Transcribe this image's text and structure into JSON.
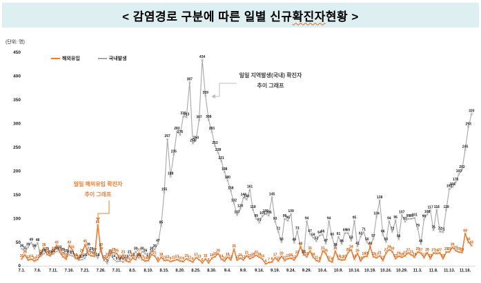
{
  "banner": {
    "pre": "< 감염경로 구분에 따른 일별 신규 ",
    "highlight": "확진자",
    "post": " 현황 >"
  },
  "unit_label": "(단위: 명)",
  "colors": {
    "banner_bg": "#DDEFF1",
    "imported": "#ED7D31",
    "domestic": "#A6A6A6",
    "imported_label": "#C55A11",
    "domestic_label": "#1A1A1A"
  },
  "legend": [
    {
      "label": "해외유입"
    },
    {
      "label": "국내발생"
    }
  ],
  "annotations": {
    "domestic": {
      "line1": "일일 지역발생(국내) 확진자",
      "line2": "추이 그래프"
    },
    "imported": {
      "line1": "일일 해외유입 확진자",
      "line2": "추이 그래프"
    }
  },
  "chart_data": {
    "type": "line",
    "title": "< 감염경로 구분에 따른 일별 신규 확진자 현황 >",
    "xlabel": "",
    "ylabel": "(단위: 명)",
    "ylim": [
      0,
      450
    ],
    "grid": false,
    "legend_position": "top-left",
    "x_start_date": "7.1.",
    "x_end_date": "11.20.",
    "y_ticks": [
      0,
      50,
      100,
      150,
      200,
      250,
      300,
      350,
      400,
      450
    ],
    "x_tick_labels": [
      "7.1.",
      "7.6.",
      "7.11.",
      "7.16.",
      "7.21.",
      "7.26.",
      "7.31.",
      "8.5.",
      "8.10.",
      "8.15.",
      "8.20.",
      "8.25.",
      "8.30.",
      "9.4.",
      "9.9.",
      "9.14.",
      "9.19.",
      "9.24.",
      "9.29.",
      "10.4.",
      "10.9.",
      "10.14.",
      "10.19.",
      "10.24.",
      "10.29.",
      "11.3.",
      "11.8.",
      "11.13.",
      "11.18."
    ],
    "x_tick_every_n_points": 5,
    "series": [
      {
        "id": "imported",
        "name": "해외유입",
        "color": "#ED7D31",
        "label_color": "#C55A11",
        "line_width": 1.6,
        "values": [
          15,
          23,
          12,
          14,
          10,
          13,
          24,
          38,
          24,
          21,
          30,
          43,
          29,
          19,
          14,
          43,
          33,
          16,
          14,
          26,
          45,
          24,
          21,
          20,
          86,
          30,
          12,
          18,
          25,
          28,
          26,
          13,
          23,
          10,
          8,
          16,
          13,
          27,
          13,
          10,
          11,
          24,
          21,
          9,
          18,
          11,
          12,
          9,
          11,
          13,
          10,
          9,
          15,
          11,
          8,
          17,
          13,
          6,
          15,
          6,
          16,
          19,
          26,
          14,
          10,
          18,
          12,
          35,
          12,
          16,
          12,
          21,
          15,
          18,
          22,
          18,
          14,
          4,
          7,
          8,
          17,
          10,
          20,
          11,
          15,
          16,
          12,
          22,
          40,
          24,
          19,
          31,
          18,
          11,
          9,
          31,
          26,
          11,
          8,
          31,
          14,
          12,
          13,
          28,
          34,
          14,
          26,
          10,
          19,
          20,
          40,
          19,
          17,
          21,
          11,
          27,
          34,
          30,
          15,
          20,
          18,
          21,
          27,
          23,
          18,
          29,
          27,
          17,
          28,
          15,
          27,
          26,
          27,
          15,
          29,
          29,
          39,
          32,
          29,
          28,
          68,
          50,
          43
        ]
      },
      {
        "id": "domestic",
        "name": "국내발생",
        "color": "#A6A6A6",
        "label_color": "#1A1A1A",
        "line_width": 1.1,
        "values": [
          36,
          31,
          39,
          49,
          36,
          48,
          20,
          26,
          29,
          23,
          25,
          30,
          33,
          28,
          25,
          23,
          21,
          16,
          12,
          13,
          16,
          39,
          29,
          27,
          16,
          37,
          12,
          5,
          23,
          14,
          9,
          10,
          8,
          13,
          23,
          17,
          30,
          16,
          30,
          26,
          17,
          30,
          35,
          47,
          85,
          155,
          267,
          188,
          235,
          283,
          276,
          315,
          313,
          387,
          258,
          264,
          307,
          434,
          359,
          308,
          283,
          253,
          238,
          221,
          198,
          180,
          158,
          132,
          107,
          120,
          144,
          140,
          161,
          118,
          99,
          91,
          105,
          109,
          106,
          145,
          93,
          72,
          50,
          99,
          95,
          109,
          49,
          73,
          40,
          23,
          94,
          67,
          59,
          52,
          64,
          66,
          47,
          94,
          60,
          38,
          61,
          46,
          69,
          69,
          53,
          95,
          41,
          62,
          71,
          50,
          41,
          57,
          104,
          138,
          66,
          50,
          94,
          72,
          96,
          56,
          107,
          93,
          99,
          99,
          101,
          79,
          46,
          98,
          108,
          117,
          75,
          118,
          72,
          71,
          118,
          162,
          166,
          176,
          193,
          202,
          245,
          293,
          320
        ]
      }
    ]
  }
}
